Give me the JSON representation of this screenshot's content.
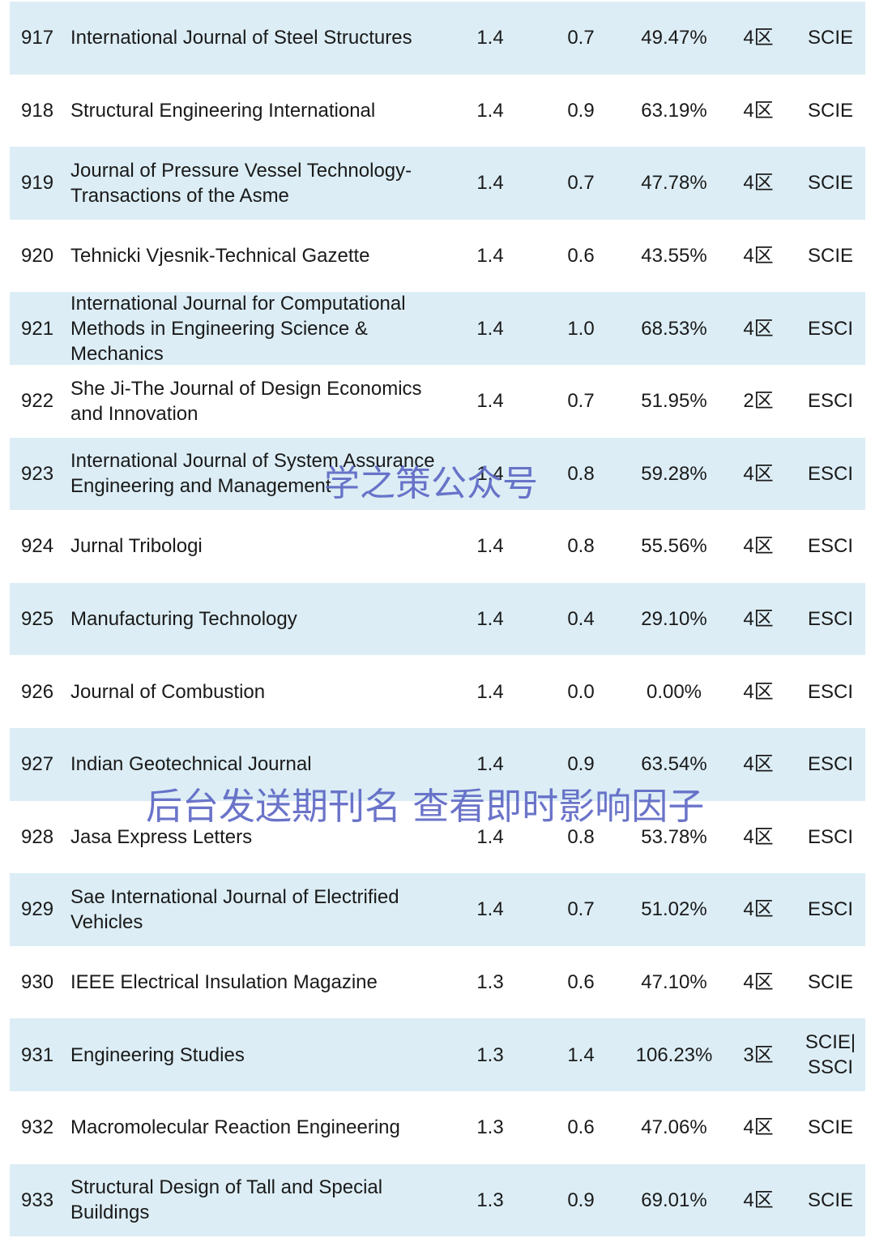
{
  "table": {
    "rows": [
      [
        "917",
        "International Journal of Steel Structures",
        "1.4",
        "0.7",
        "49.47%",
        "4区",
        "SCIE"
      ],
      [
        "918",
        "Structural Engineering International",
        "1.4",
        "0.9",
        "63.19%",
        "4区",
        "SCIE"
      ],
      [
        "919",
        "Journal of Pressure Vessel Technology-Transactions of the Asme",
        "1.4",
        "0.7",
        "47.78%",
        "4区",
        "SCIE"
      ],
      [
        "920",
        "Tehnicki Vjesnik-Technical Gazette",
        "1.4",
        "0.6",
        "43.55%",
        "4区",
        "SCIE"
      ],
      [
        "921",
        "International Journal for Computational Methods in Engineering Science & Mechanics",
        "1.4",
        "1.0",
        "68.53%",
        "4区",
        "ESCI"
      ],
      [
        "922",
        "She Ji-The Journal of Design Economics and Innovation",
        "1.4",
        "0.7",
        "51.95%",
        "2区",
        "ESCI"
      ],
      [
        "923",
        "International Journal of System Assurance Engineering and Management",
        "1.4",
        "0.8",
        "59.28%",
        "4区",
        "ESCI"
      ],
      [
        "924",
        "Jurnal Tribologi",
        "1.4",
        "0.8",
        "55.56%",
        "4区",
        "ESCI"
      ],
      [
        "925",
        "Manufacturing Technology",
        "1.4",
        "0.4",
        "29.10%",
        "4区",
        "ESCI"
      ],
      [
        "926",
        "Journal of Combustion",
        "1.4",
        "0.0",
        "0.00%",
        "4区",
        "ESCI"
      ],
      [
        "927",
        "Indian Geotechnical Journal",
        "1.4",
        "0.9",
        "63.54%",
        "4区",
        "ESCI"
      ],
      [
        "928",
        "Jasa Express Letters",
        "1.4",
        "0.8",
        "53.78%",
        "4区",
        "ESCI"
      ],
      [
        "929",
        "Sae International Journal of Electrified Vehicles",
        "1.4",
        "0.7",
        "51.02%",
        "4区",
        "ESCI"
      ],
      [
        "930",
        "IEEE Electrical Insulation Magazine",
        "1.3",
        "0.6",
        "47.10%",
        "4区",
        "SCIE"
      ],
      [
        "931",
        "Engineering Studies",
        "1.3",
        "1.4",
        "106.23%",
        "3区",
        "SCIE|SSCI"
      ],
      [
        "932",
        "Macromolecular Reaction Engineering",
        "1.3",
        "0.6",
        "47.06%",
        "4区",
        "SCIE"
      ],
      [
        "933",
        "Structural Design of Tall and Special Buildings",
        "1.3",
        "0.9",
        "69.01%",
        "4区",
        "SCIE"
      ]
    ]
  },
  "watermarks": [
    "学之策公众号",
    "后台发送期刊名 查看即时影响因子"
  ]
}
